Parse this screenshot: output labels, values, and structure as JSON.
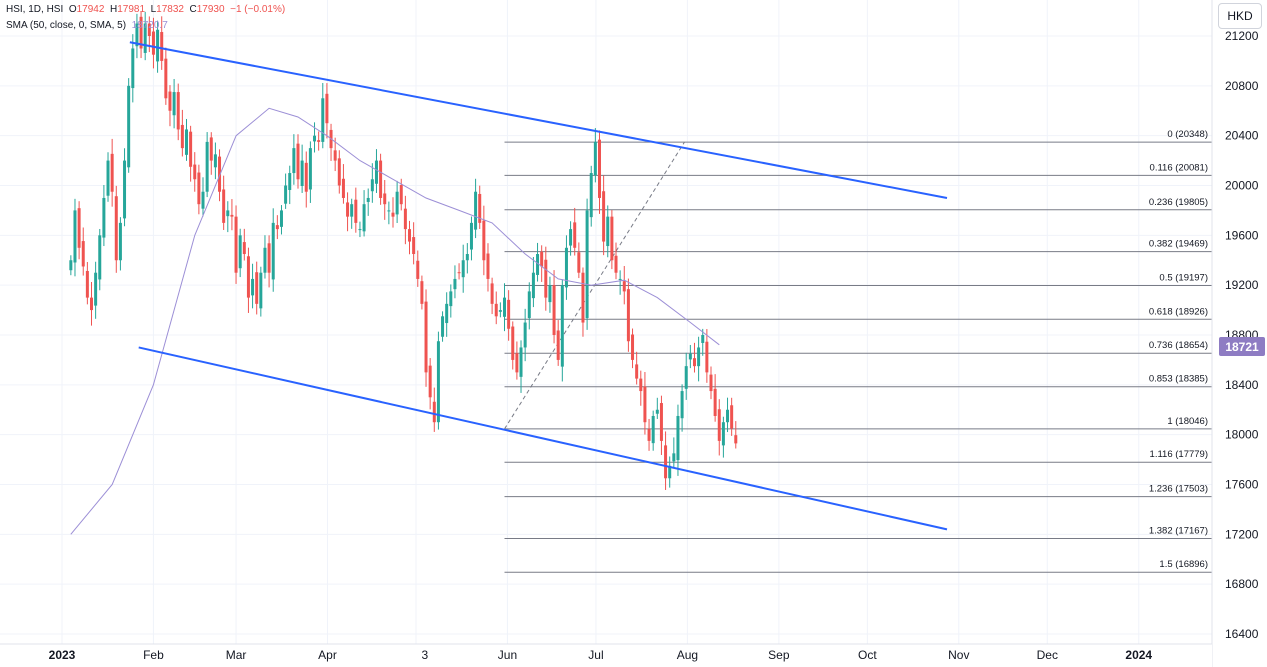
{
  "legend": {
    "symbol": "HSI, 1D, HSI",
    "open_label": "O",
    "open": "17942",
    "high_label": "H",
    "high": "17981",
    "low_label": "L",
    "low": "17832",
    "close_label": "C",
    "close": "17930",
    "change": "−1 (−0.01%)",
    "sma_label": "SMA (50, close, 0, SMA, 5)",
    "sma_value": "18720.7"
  },
  "currency": "HKD",
  "last_price_tag": "18721",
  "colors": {
    "up": "#26a69a",
    "down": "#ef5350",
    "sma": "#9c8fd6",
    "trendline": "#2962ff",
    "fib": "#787b86"
  },
  "chart_data": {
    "type": "candlestick",
    "y_axis": {
      "ylim": [
        16400,
        21300
      ],
      "ticks": [
        16400,
        16800,
        17200,
        17600,
        18000,
        18400,
        18800,
        19200,
        19600,
        20000,
        20400,
        20800,
        21200
      ]
    },
    "x_axis": {
      "tick_labels": [
        "2023",
        "Feb",
        "Mar",
        "Apr",
        "3",
        "Jun",
        "Jul",
        "Aug",
        "Sep",
        "Oct",
        "Nov",
        "Dec",
        "2024"
      ]
    },
    "fib_levels": [
      {
        "ratio": "0",
        "price": 20348
      },
      {
        "ratio": "0.116",
        "price": 20081
      },
      {
        "ratio": "0.236",
        "price": 19805
      },
      {
        "ratio": "0.382",
        "price": 19469
      },
      {
        "ratio": "0.5",
        "price": 19197
      },
      {
        "ratio": "0.618",
        "price": 18926
      },
      {
        "ratio": "0.736",
        "price": 18654
      },
      {
        "ratio": "0.853",
        "price": 18385
      },
      {
        "ratio": "1",
        "price": 18046
      },
      {
        "ratio": "1.116",
        "price": 17779
      },
      {
        "ratio": "1.236",
        "price": 17503
      },
      {
        "ratio": "1.382",
        "price": 17167
      },
      {
        "ratio": "1.5",
        "price": 16896
      }
    ],
    "trendlines": [
      {
        "name": "upper-channel",
        "from": {
          "date": "2023-01-24",
          "price": 21150
        },
        "to": {
          "date": "2023-10-28",
          "price": 19900
        }
      },
      {
        "name": "lower-channel",
        "from": {
          "date": "2023-01-27",
          "price": 18700
        },
        "to": {
          "date": "2023-10-28",
          "price": 17240
        }
      }
    ],
    "fib_anchor": {
      "from": {
        "date": "2023-05-31",
        "price": 18046
      },
      "to": {
        "date": "2023-07-31",
        "price": 20348
      }
    },
    "closes": [
      19400,
      19800,
      19500,
      19350,
      19100,
      19000,
      19300,
      19600,
      19900,
      20200,
      19950,
      19400,
      19700,
      20200,
      20800,
      21100,
      21300,
      21100,
      21300,
      21200,
      21050,
      21250,
      21000,
      20700,
      20600,
      20750,
      20450,
      20300,
      20450,
      20150,
      20050,
      19850,
      19950,
      20350,
      20200,
      20250,
      19950,
      19700,
      19800,
      19750,
      19300,
      19600,
      19450,
      19100,
      19250,
      19050,
      19300,
      19500,
      19300,
      19700,
      19650,
      19800,
      20000,
      20100,
      20300,
      20050,
      20200,
      19950,
      20300,
      20400,
      20350,
      20700,
      20500,
      20300,
      20200,
      20000,
      19900,
      19750,
      19850,
      19700,
      19650,
      19850,
      19900,
      20050,
      20200,
      19900,
      19850,
      19800,
      19750,
      19950,
      19850,
      19650,
      19550,
      19450,
      19250,
      19050,
      18500,
      18300,
      18100,
      18750,
      18950,
      19050,
      19150,
      19250,
      19300,
      19400,
      19450,
      19700,
      19950,
      19700,
      19400,
      19250,
      19050,
      18950,
      19000,
      19100,
      18850,
      18600,
      18500,
      18700,
      18900,
      19150,
      19300,
      19450,
      19350,
      19100,
      19200,
      18800,
      18600,
      19200,
      19500,
      19650,
      19500,
      19300,
      18900,
      19800,
      20100,
      20350,
      19900,
      19550,
      19750,
      19400,
      19300,
      19250,
      19150,
      18750,
      18600,
      18450,
      18350,
      18100,
      17950,
      18150,
      18200,
      17950,
      17650,
      17750,
      17850,
      18150,
      18350,
      18550,
      18650,
      18550,
      18700,
      18800,
      18500,
      18350,
      18150,
      17950,
      18100,
      18200,
      18050,
      17930
    ],
    "sma": [
      {
        "i": 0,
        "v": 17200
      },
      {
        "i": 10,
        "v": 17600
      },
      {
        "i": 20,
        "v": 18400
      },
      {
        "i": 30,
        "v": 19600
      },
      {
        "i": 40,
        "v": 20400
      },
      {
        "i": 48,
        "v": 20620
      },
      {
        "i": 55,
        "v": 20550
      },
      {
        "i": 62,
        "v": 20400
      },
      {
        "i": 70,
        "v": 20200
      },
      {
        "i": 78,
        "v": 20050
      },
      {
        "i": 86,
        "v": 19900
      },
      {
        "i": 94,
        "v": 19800
      },
      {
        "i": 102,
        "v": 19700
      },
      {
        "i": 110,
        "v": 19450
      },
      {
        "i": 118,
        "v": 19250
      },
      {
        "i": 126,
        "v": 19200
      },
      {
        "i": 134,
        "v": 19240
      },
      {
        "i": 142,
        "v": 19100
      },
      {
        "i": 150,
        "v": 18900
      },
      {
        "i": 157,
        "v": 18721
      }
    ]
  }
}
